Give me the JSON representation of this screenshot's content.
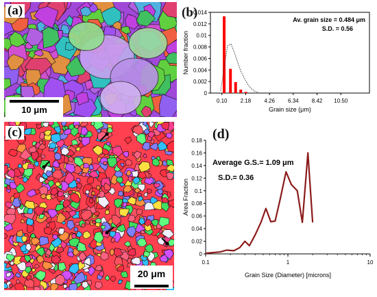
{
  "panels": {
    "a": {
      "label": "(a)",
      "scale_text": "10 μm"
    },
    "b": {
      "label": "(b)"
    },
    "c": {
      "label": "(c)",
      "scale_text": "20 μm"
    },
    "d": {
      "label": "(d)"
    }
  },
  "chart_data": [
    {
      "panel": "(b)",
      "type": "bar",
      "ylabel": "Number fraction",
      "xlabel": "Grain size (μm)",
      "yticks": [
        "0",
        "0.002",
        "0.004",
        "0.006",
        "0.008",
        "0.01",
        "0.012",
        "0.014"
      ],
      "ylim": [
        0,
        0.014
      ],
      "xticks": [
        "0.10",
        "2.18",
        "4.26",
        "6.34",
        "8.42",
        "10.50"
      ],
      "xlim": [
        -0.9,
        13.0
      ],
      "annotations": [
        "Av. grain size = 0.484 μm",
        "S.D. = 0.56"
      ],
      "bar_color": "#ff0000",
      "series": [
        {
          "x": [
            0.3,
            0.85,
            1.3,
            1.75,
            2.2
          ],
          "values": [
            0.0133,
            0.0042,
            0.0019,
            0.0006,
            0.0002
          ]
        }
      ],
      "fit_line": {
        "style": "dotted",
        "x": [
          0.0,
          0.3,
          0.6,
          0.9,
          1.2,
          1.5,
          1.8,
          2.1,
          2.4,
          2.7,
          3.0,
          3.3
        ],
        "y": [
          0.0004,
          0.0045,
          0.0082,
          0.0085,
          0.007,
          0.0052,
          0.0036,
          0.0024,
          0.0014,
          0.0007,
          0.0003,
          0.0001
        ]
      }
    },
    {
      "panel": "(d)",
      "type": "line",
      "scale": "log-x",
      "ylabel": "Area Fraction",
      "xlabel": "Grain Size (Diameter) [microns]",
      "yticks": [
        "0",
        "0.02",
        "0.04",
        "0.06",
        "0.08",
        "0.1",
        "0.12",
        "0.14",
        "0.16",
        "0.18"
      ],
      "ylim": [
        0,
        0.18
      ],
      "xticks": [
        "0.1",
        "1",
        "10"
      ],
      "xlim": [
        0.1,
        10
      ],
      "annotations": [
        "Average G.S.= 1.09 μm",
        "S.D.= 0.36"
      ],
      "line_color": "#8b1a1a",
      "series": [
        {
          "x": [
            0.1,
            0.12,
            0.15,
            0.18,
            0.22,
            0.26,
            0.3,
            0.34,
            0.4,
            0.47,
            0.54,
            0.62,
            0.7,
            0.8,
            0.95,
            1.1,
            1.3,
            1.5,
            1.75,
            2.0
          ],
          "values": [
            0.001,
            0.002,
            0.003,
            0.006,
            0.005,
            0.01,
            0.02,
            0.013,
            0.03,
            0.05,
            0.072,
            0.051,
            0.052,
            0.085,
            0.13,
            0.11,
            0.1,
            0.05,
            0.16,
            0.05
          ]
        }
      ]
    }
  ]
}
